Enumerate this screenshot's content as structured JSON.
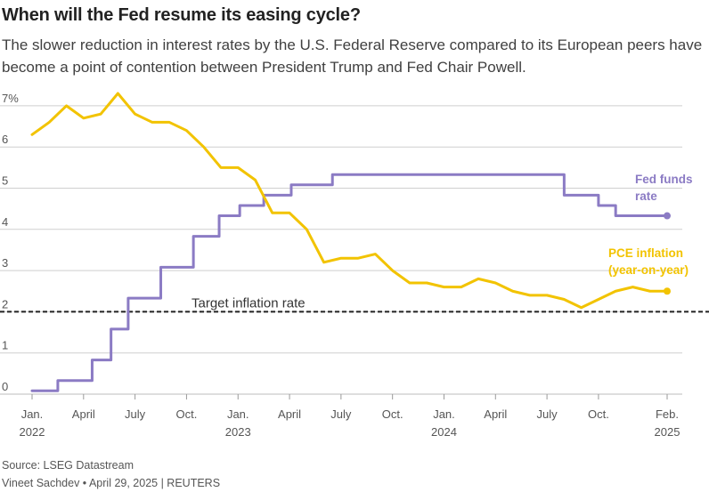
{
  "title": "When will the Fed resume its easing cycle?",
  "subtitle": "The slower reduction in interest rates by the U.S. Federal Reserve compared to its European peers have become a point of contention between President Trump and Fed Chair Powell.",
  "source": "Source: LSEG Datastream",
  "byline": "Vineet Sachdev • April 29, 2025 | REUTERS",
  "colors": {
    "fed": "#8b7bc4",
    "pce": "#f2c300",
    "grid": "#cfcfcf",
    "target": "#222222"
  },
  "chart_data": {
    "type": "line",
    "x_unit": "months since Jan. 2022",
    "ylim": [
      0,
      7
    ],
    "y_ticks": [
      {
        "value": 0,
        "label": "0"
      },
      {
        "value": 1,
        "label": "1"
      },
      {
        "value": 2,
        "label": "2"
      },
      {
        "value": 3,
        "label": "3"
      },
      {
        "value": 4,
        "label": "4"
      },
      {
        "value": 5,
        "label": "5"
      },
      {
        "value": 6,
        "label": "6"
      },
      {
        "value": 7,
        "label": "7%"
      }
    ],
    "x_ticks": [
      {
        "value": 0,
        "label": "Jan.",
        "year": "2022"
      },
      {
        "value": 3,
        "label": "April"
      },
      {
        "value": 6,
        "label": "July"
      },
      {
        "value": 9,
        "label": "Oct."
      },
      {
        "value": 12,
        "label": "Jan.",
        "year": "2023"
      },
      {
        "value": 15,
        "label": "April"
      },
      {
        "value": 18,
        "label": "July"
      },
      {
        "value": 21,
        "label": "Oct."
      },
      {
        "value": 24,
        "label": "Jan.",
        "year": "2024"
      },
      {
        "value": 27,
        "label": "April"
      },
      {
        "value": 30,
        "label": "July"
      },
      {
        "value": 33,
        "label": "Oct."
      },
      {
        "value": 37,
        "label": "Feb.",
        "year": "2025"
      }
    ],
    "target": {
      "value": 2,
      "label": "Target inflation rate"
    },
    "series": [
      {
        "name": "Fed funds rate",
        "label_lines": [
          "Fed funds",
          "rate"
        ],
        "step": true,
        "x": [
          0,
          1.5,
          3.5,
          4.6,
          5.6,
          7.5,
          9.4,
          10.9,
          12.1,
          13.5,
          15.1,
          17.5,
          31,
          33,
          34,
          37
        ],
        "y": [
          0.08,
          0.33,
          0.83,
          1.58,
          2.33,
          3.08,
          3.83,
          4.33,
          4.58,
          4.83,
          5.08,
          5.33,
          4.83,
          4.58,
          4.33,
          4.33
        ]
      },
      {
        "name": "PCE inflation (year-on-year)",
        "label_lines": [
          "PCE inflation",
          "(year-on-year)"
        ],
        "step": false,
        "x": [
          0,
          1,
          2,
          3,
          4,
          5,
          6,
          7,
          8,
          9,
          10,
          11,
          12,
          13,
          14,
          15,
          16,
          17,
          18,
          19,
          20,
          21,
          22,
          23,
          24,
          25,
          26,
          27,
          28,
          29,
          30,
          31,
          32,
          33,
          34,
          35,
          36,
          37
        ],
        "y": [
          6.3,
          6.6,
          7.0,
          6.7,
          6.8,
          7.3,
          6.8,
          6.6,
          6.6,
          6.4,
          6.0,
          5.5,
          5.5,
          5.2,
          4.4,
          4.4,
          4.0,
          3.2,
          3.3,
          3.3,
          3.4,
          3.0,
          2.7,
          2.7,
          2.6,
          2.6,
          2.8,
          2.7,
          2.5,
          2.4,
          2.4,
          2.3,
          2.1,
          2.3,
          2.5,
          2.6,
          2.5,
          2.5
        ]
      }
    ]
  }
}
